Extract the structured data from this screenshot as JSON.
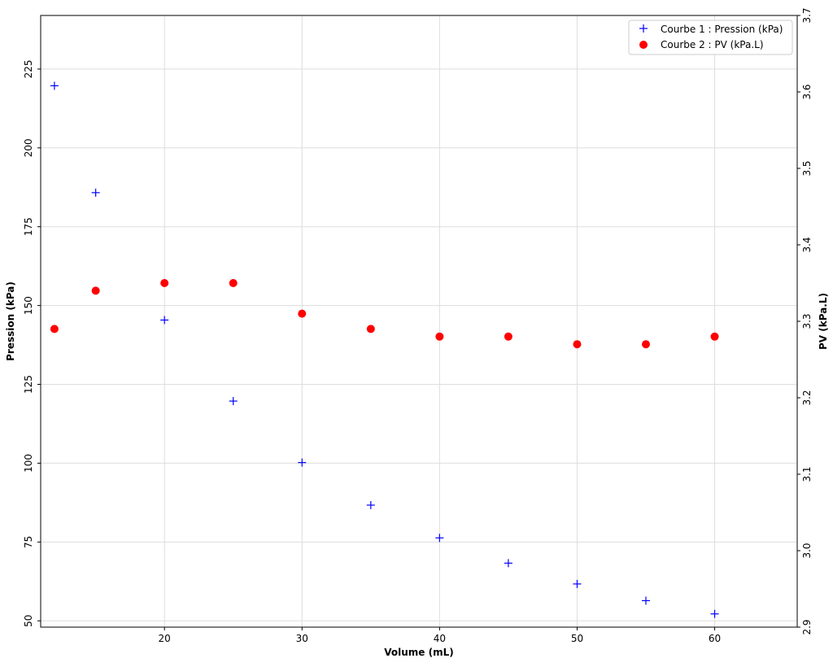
{
  "chart_data": {
    "type": "scatter",
    "title": "",
    "xlabel": "Volume (mL)",
    "ylabel": "Pression (kPa)",
    "y2label": "PV (kPa.L)",
    "xlim": [
      11,
      66
    ],
    "ylim": [
      48,
      242
    ],
    "y2lim": [
      2.9,
      3.7
    ],
    "x_ticks": [
      "20",
      "30",
      "40",
      "50",
      "60"
    ],
    "y_ticks": [
      "50",
      "75",
      "100",
      "125",
      "150",
      "175",
      "200",
      "225"
    ],
    "y2_ticks": [
      "2.9",
      "3.0",
      "3.1",
      "3.2",
      "3.3",
      "3.4",
      "3.5",
      "3.6",
      "3.7"
    ],
    "grid": true,
    "legend_position": "top-right",
    "x": [
      12,
      15,
      20,
      25,
      30,
      35,
      40,
      45,
      50,
      55,
      60
    ],
    "series": [
      {
        "name": "Courbe 1 : Pression (kPa)",
        "axis": "left",
        "marker": "plus",
        "color": "#0000ff",
        "values": [
          219.7,
          185.8,
          145.4,
          119.7,
          100.2,
          86.7,
          76.3,
          68.3,
          61.7,
          56.4,
          52.2
        ]
      },
      {
        "name": "Courbe 2 : PV (kPa.L)",
        "axis": "right",
        "marker": "circle",
        "color": "#ff0000",
        "values": [
          3.29,
          3.34,
          3.35,
          3.35,
          3.31,
          3.29,
          3.28,
          3.28,
          3.27,
          3.27,
          3.28
        ]
      }
    ]
  }
}
